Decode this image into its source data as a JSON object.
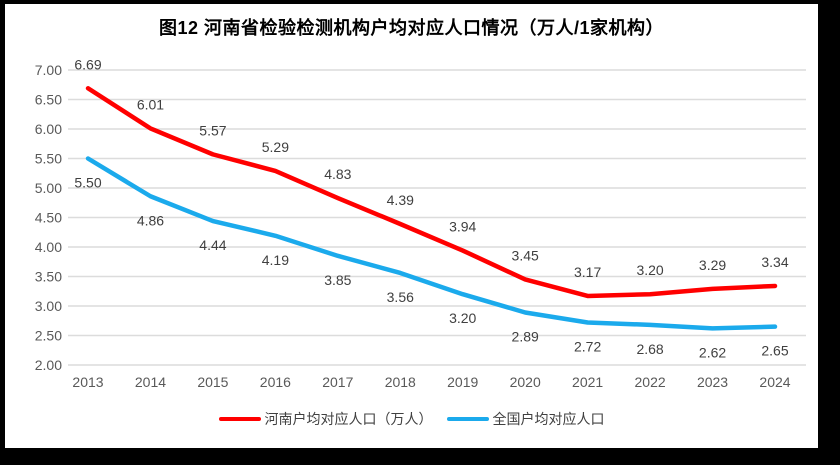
{
  "page": {
    "frame_color": "#000000",
    "panel_background": "#ffffff"
  },
  "chart_data": {
    "type": "line",
    "title": "图12  河南省检验检测机构户均对应人口情况（万人/1家机构）",
    "categories": [
      "2013",
      "2014",
      "2015",
      "2016",
      "2017",
      "2018",
      "2019",
      "2020",
      "2021",
      "2022",
      "2023",
      "2024"
    ],
    "series": [
      {
        "id": "henan",
        "name": "河南户均对应人口（万人）",
        "color": "#FF0000",
        "label_position": "above",
        "values": [
          6.69,
          6.01,
          5.57,
          5.29,
          4.83,
          4.39,
          3.94,
          3.45,
          3.17,
          3.2,
          3.29,
          3.34
        ]
      },
      {
        "id": "national",
        "name": "全国户均对应人口",
        "color": "#1BAAEC",
        "label_position": "below",
        "values": [
          5.5,
          4.86,
          4.44,
          4.19,
          3.85,
          3.56,
          3.2,
          2.89,
          2.72,
          2.68,
          2.62,
          2.65
        ]
      }
    ],
    "ylim": [
      2.0,
      7.0
    ],
    "ytick_step": 0.5,
    "yticks": [
      "7.00",
      "6.50",
      "6.00",
      "5.50",
      "5.00",
      "4.50",
      "4.00",
      "3.50",
      "3.00",
      "2.50",
      "2.00"
    ],
    "xlabel": "",
    "ylabel": "",
    "grid": true,
    "legend_position": "bottom",
    "colors": {
      "gridline": "#DCDCDC",
      "tick_label": "#595959",
      "data_label": "#404040",
      "title": "#000000"
    }
  }
}
